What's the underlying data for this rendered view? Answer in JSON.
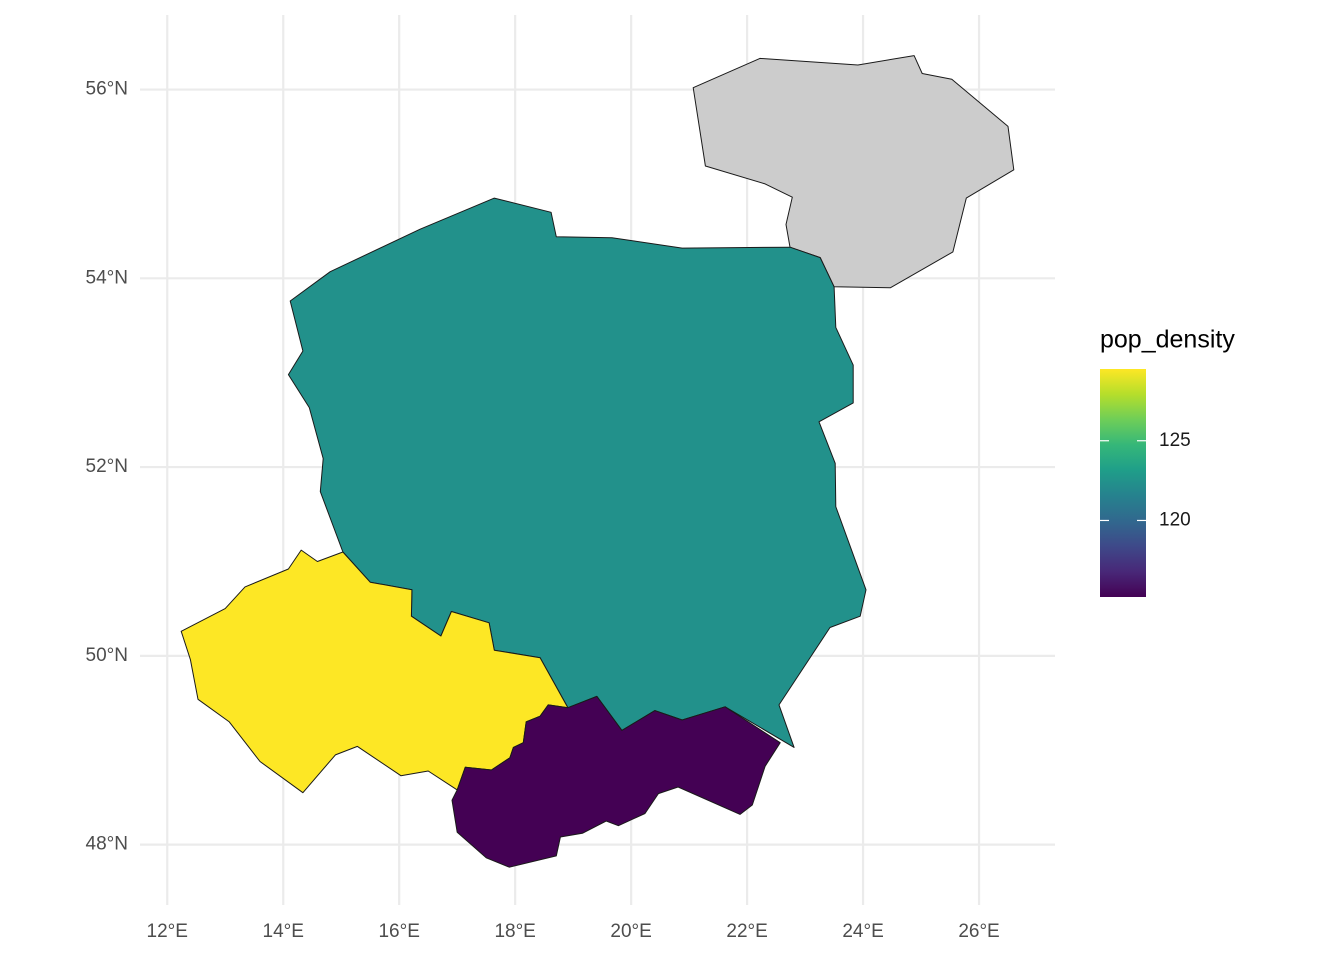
{
  "chart_data": {
    "type": "map",
    "legend_title": "pop_density",
    "colormap": "viridis",
    "na_color": "#cccccc",
    "border_color": "#1a1a1a",
    "grid": true,
    "fill_limits": [
      115.2,
      129.5
    ],
    "fill_ticks": [
      120,
      125
    ],
    "xlim": [
      11.53,
      27.31
    ],
    "ylim": [
      47.36,
      56.79
    ],
    "xticks": [
      {
        "value": 12,
        "label": "12°E"
      },
      {
        "value": 14,
        "label": "14°E"
      },
      {
        "value": 16,
        "label": "16°E"
      },
      {
        "value": 18,
        "label": "18°E"
      },
      {
        "value": 20,
        "label": "20°E"
      },
      {
        "value": 22,
        "label": "22°E"
      },
      {
        "value": 24,
        "label": "24°E"
      },
      {
        "value": 26,
        "label": "26°E"
      }
    ],
    "yticks": [
      {
        "value": 48,
        "label": "48°N"
      },
      {
        "value": 50,
        "label": "50°N"
      },
      {
        "value": 52,
        "label": "52°N"
      },
      {
        "value": 54,
        "label": "54°N"
      },
      {
        "value": 56,
        "label": "56°N"
      }
    ],
    "regions": [
      {
        "value": null,
        "coords": [
          [
            21.07,
            56.02
          ],
          [
            22.22,
            56.33
          ],
          [
            23.91,
            56.26
          ],
          [
            24.88,
            56.36
          ],
          [
            25.02,
            56.17
          ],
          [
            25.53,
            56.11
          ],
          [
            26.5,
            55.61
          ],
          [
            26.6,
            55.15
          ],
          [
            25.78,
            54.85
          ],
          [
            25.55,
            54.28
          ],
          [
            24.47,
            53.9
          ],
          [
            23.5,
            53.91
          ],
          [
            23.26,
            54.22
          ],
          [
            22.74,
            54.33
          ],
          [
            22.67,
            54.57
          ],
          [
            22.78,
            54.86
          ],
          [
            22.31,
            55.0
          ],
          [
            21.28,
            55.19
          ]
        ]
      },
      {
        "value": 122.4,
        "coords": [
          [
            14.12,
            53.76
          ],
          [
            14.81,
            54.07
          ],
          [
            16.36,
            54.52
          ],
          [
            17.64,
            54.85
          ],
          [
            18.62,
            54.7
          ],
          [
            18.71,
            54.44
          ],
          [
            19.67,
            54.43
          ],
          [
            20.88,
            54.32
          ],
          [
            22.74,
            54.33
          ],
          [
            23.26,
            54.22
          ],
          [
            23.5,
            53.91
          ],
          [
            23.53,
            53.48
          ],
          [
            23.83,
            53.08
          ],
          [
            23.83,
            52.68
          ],
          [
            23.24,
            52.48
          ],
          [
            23.52,
            52.04
          ],
          [
            23.53,
            51.58
          ],
          [
            24.05,
            50.7
          ],
          [
            23.95,
            50.42
          ],
          [
            23.43,
            50.3
          ],
          [
            22.55,
            49.48
          ],
          [
            22.81,
            49.03
          ],
          [
            21.62,
            49.46
          ],
          [
            20.88,
            49.32
          ],
          [
            20.41,
            49.42
          ],
          [
            19.84,
            49.21
          ],
          [
            19.41,
            49.57
          ],
          [
            18.91,
            49.45
          ],
          [
            18.43,
            49.98
          ],
          [
            17.64,
            50.06
          ],
          [
            17.55,
            50.35
          ],
          [
            16.9,
            50.47
          ],
          [
            16.72,
            50.21
          ],
          [
            16.21,
            50.42
          ],
          [
            16.22,
            50.7
          ],
          [
            15.5,
            50.78
          ],
          [
            15.03,
            51.1
          ],
          [
            14.64,
            51.74
          ],
          [
            14.69,
            52.09
          ],
          [
            14.45,
            52.63
          ],
          [
            14.09,
            52.98
          ],
          [
            14.34,
            53.23
          ]
        ]
      },
      {
        "value": 129.5,
        "coords": [
          [
            15.03,
            51.1
          ],
          [
            14.59,
            51.0
          ],
          [
            14.31,
            51.12
          ],
          [
            14.09,
            50.92
          ],
          [
            13.34,
            50.73
          ],
          [
            13.0,
            50.5
          ],
          [
            12.24,
            50.26
          ],
          [
            12.4,
            49.96
          ],
          [
            12.53,
            49.54
          ],
          [
            13.07,
            49.3
          ],
          [
            13.6,
            48.88
          ],
          [
            14.34,
            48.55
          ],
          [
            14.9,
            48.95
          ],
          [
            15.28,
            49.04
          ],
          [
            16.03,
            48.73
          ],
          [
            16.5,
            48.78
          ],
          [
            17.0,
            48.58
          ],
          [
            17.14,
            48.82
          ],
          [
            17.59,
            48.79
          ],
          [
            17.91,
            48.92
          ],
          [
            17.97,
            49.03
          ],
          [
            18.14,
            49.08
          ],
          [
            18.19,
            49.3
          ],
          [
            18.43,
            49.36
          ],
          [
            18.57,
            49.48
          ],
          [
            18.91,
            49.45
          ],
          [
            18.43,
            49.98
          ],
          [
            17.64,
            50.06
          ],
          [
            17.55,
            50.35
          ],
          [
            16.9,
            50.47
          ],
          [
            16.72,
            50.21
          ],
          [
            16.21,
            50.42
          ],
          [
            16.22,
            50.7
          ],
          [
            15.5,
            50.78
          ]
        ]
      },
      {
        "value": 115.2,
        "coords": [
          [
            18.91,
            49.45
          ],
          [
            19.41,
            49.57
          ],
          [
            19.84,
            49.21
          ],
          [
            20.41,
            49.42
          ],
          [
            20.88,
            49.32
          ],
          [
            21.62,
            49.46
          ],
          [
            22.57,
            49.08
          ],
          [
            22.31,
            48.83
          ],
          [
            22.09,
            48.42
          ],
          [
            21.88,
            48.32
          ],
          [
            20.81,
            48.61
          ],
          [
            20.47,
            48.54
          ],
          [
            20.24,
            48.33
          ],
          [
            19.78,
            48.2
          ],
          [
            19.57,
            48.25
          ],
          [
            19.16,
            48.12
          ],
          [
            18.78,
            48.08
          ],
          [
            18.71,
            47.88
          ],
          [
            17.9,
            47.76
          ],
          [
            17.5,
            47.86
          ],
          [
            17.0,
            48.13
          ],
          [
            16.91,
            48.47
          ],
          [
            17.0,
            48.58
          ],
          [
            17.14,
            48.82
          ],
          [
            17.59,
            48.79
          ],
          [
            17.91,
            48.92
          ],
          [
            17.97,
            49.03
          ],
          [
            18.14,
            49.08
          ],
          [
            18.19,
            49.3
          ],
          [
            18.43,
            49.36
          ],
          [
            18.57,
            49.48
          ]
        ]
      }
    ]
  }
}
